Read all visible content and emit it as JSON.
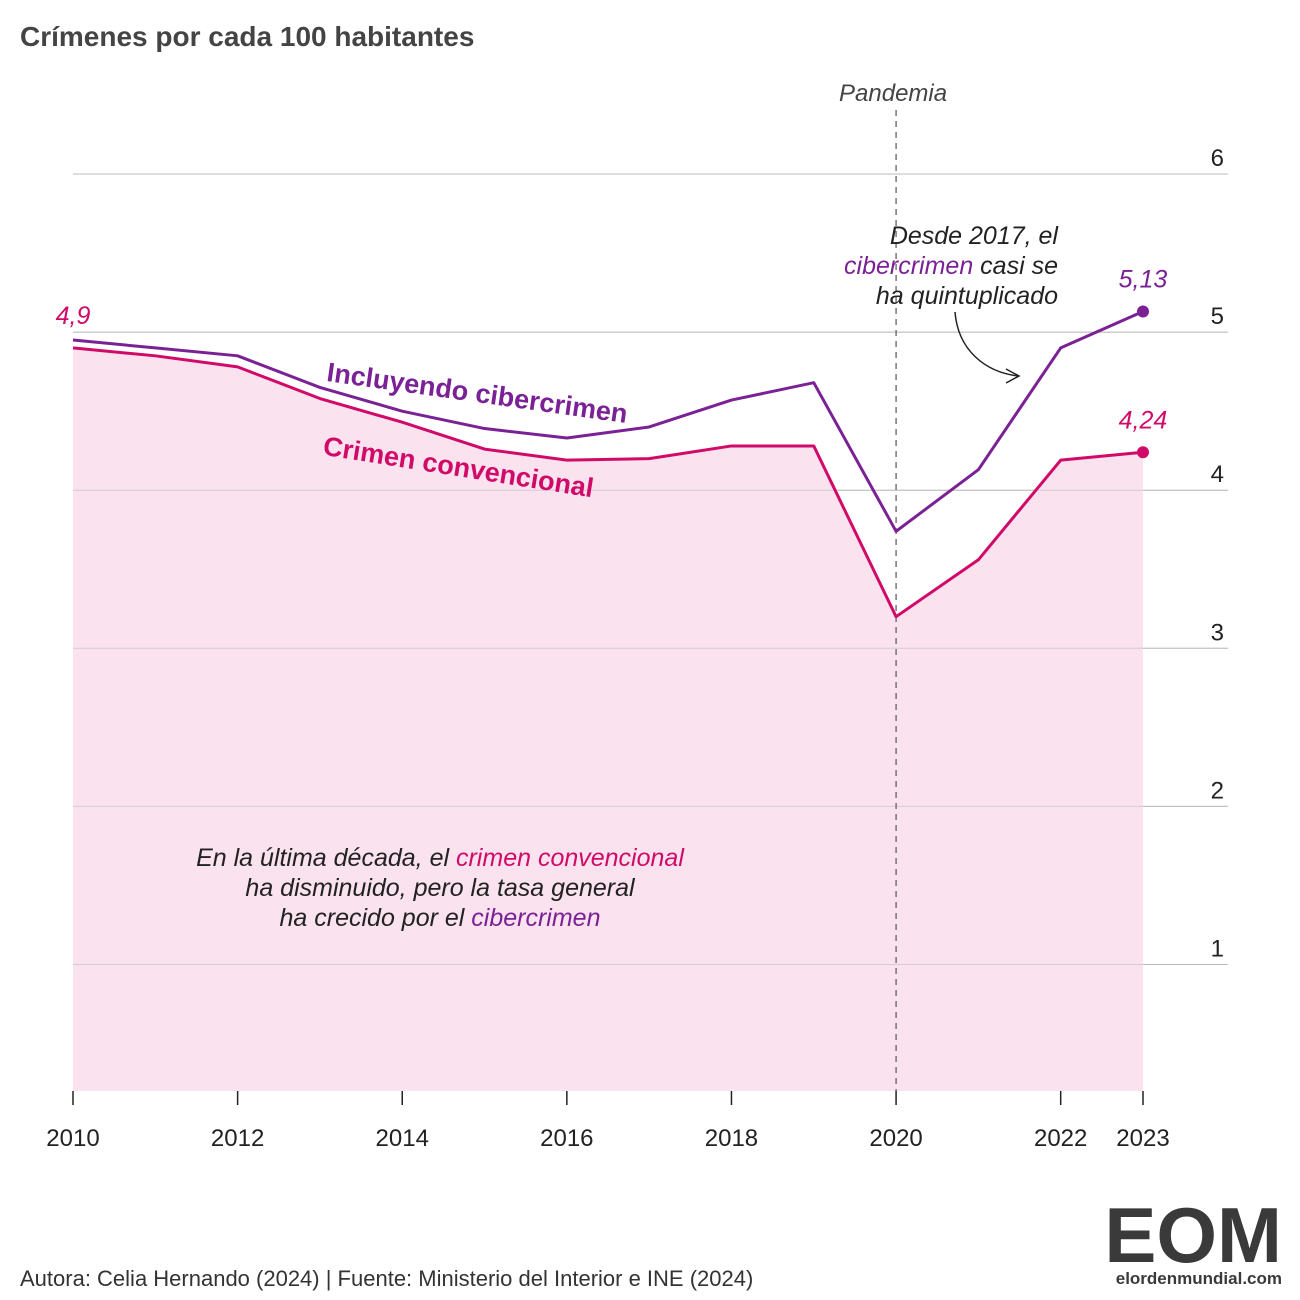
{
  "chart_data": {
    "type": "line",
    "title": "Crímenes por cada 100 habitantes",
    "x": [
      2010,
      2011,
      2012,
      2013,
      2014,
      2015,
      2016,
      2017,
      2018,
      2019,
      2020,
      2021,
      2022,
      2023
    ],
    "series": [
      {
        "name": "Incluyendo cibercrimen",
        "color": "#7b2196",
        "values": [
          4.95,
          4.9,
          4.85,
          4.65,
          4.5,
          4.39,
          4.33,
          4.4,
          4.57,
          4.68,
          3.74,
          4.13,
          4.9,
          5.13
        ],
        "value_labels": [
          null,
          null,
          null,
          null,
          null,
          null,
          null,
          null,
          null,
          null,
          null,
          null,
          null,
          "5,13"
        ]
      },
      {
        "name": "Crimen convencional",
        "color": "#d10a6a",
        "area_color": "#fae3ee",
        "values": [
          4.9,
          4.85,
          4.78,
          4.58,
          4.43,
          4.26,
          4.19,
          4.2,
          4.28,
          4.28,
          3.2,
          3.56,
          4.19,
          4.24
        ],
        "value_labels": [
          "4,9",
          null,
          null,
          null,
          null,
          null,
          null,
          null,
          null,
          null,
          null,
          null,
          null,
          "4,24"
        ]
      }
    ],
    "xlim": [
      2010,
      2023
    ],
    "xticks": [
      2010,
      2012,
      2014,
      2016,
      2018,
      2020,
      2022,
      2023
    ],
    "ylim": [
      0.2,
      6
    ],
    "yticks": [
      1,
      2,
      3,
      4,
      5,
      6
    ],
    "grid": true,
    "annotations": [
      {
        "x": 2020,
        "label": "Pandemia"
      },
      {
        "lines": [
          [
            {
              "text": "Desde 2017, el",
              "color": "#222222"
            }
          ],
          [
            {
              "text": "cibercrimen",
              "color": "#7b2196"
            },
            {
              "text": " casi se",
              "color": "#222222"
            }
          ],
          [
            {
              "text": "ha quintuplicado",
              "color": "#222222"
            }
          ]
        ]
      },
      {
        "lines": [
          [
            {
              "text": "En la última década, el ",
              "color": "#222222"
            },
            {
              "text": "crimen convencional",
              "color": "#d10a6a"
            }
          ],
          [
            {
              "text": "ha disminuido, pero la tasa general",
              "color": "#222222"
            }
          ],
          [
            {
              "text": "ha crecido por el ",
              "color": "#222222"
            },
            {
              "text": "cibercrimen",
              "color": "#7b2196"
            }
          ]
        ]
      }
    ],
    "source": "Autora: Celia Hernando (2024) | Fuente: Ministerio del Interior e INE (2024)",
    "logo": {
      "mark": "EOM",
      "site": "elordenmundial.com"
    }
  }
}
